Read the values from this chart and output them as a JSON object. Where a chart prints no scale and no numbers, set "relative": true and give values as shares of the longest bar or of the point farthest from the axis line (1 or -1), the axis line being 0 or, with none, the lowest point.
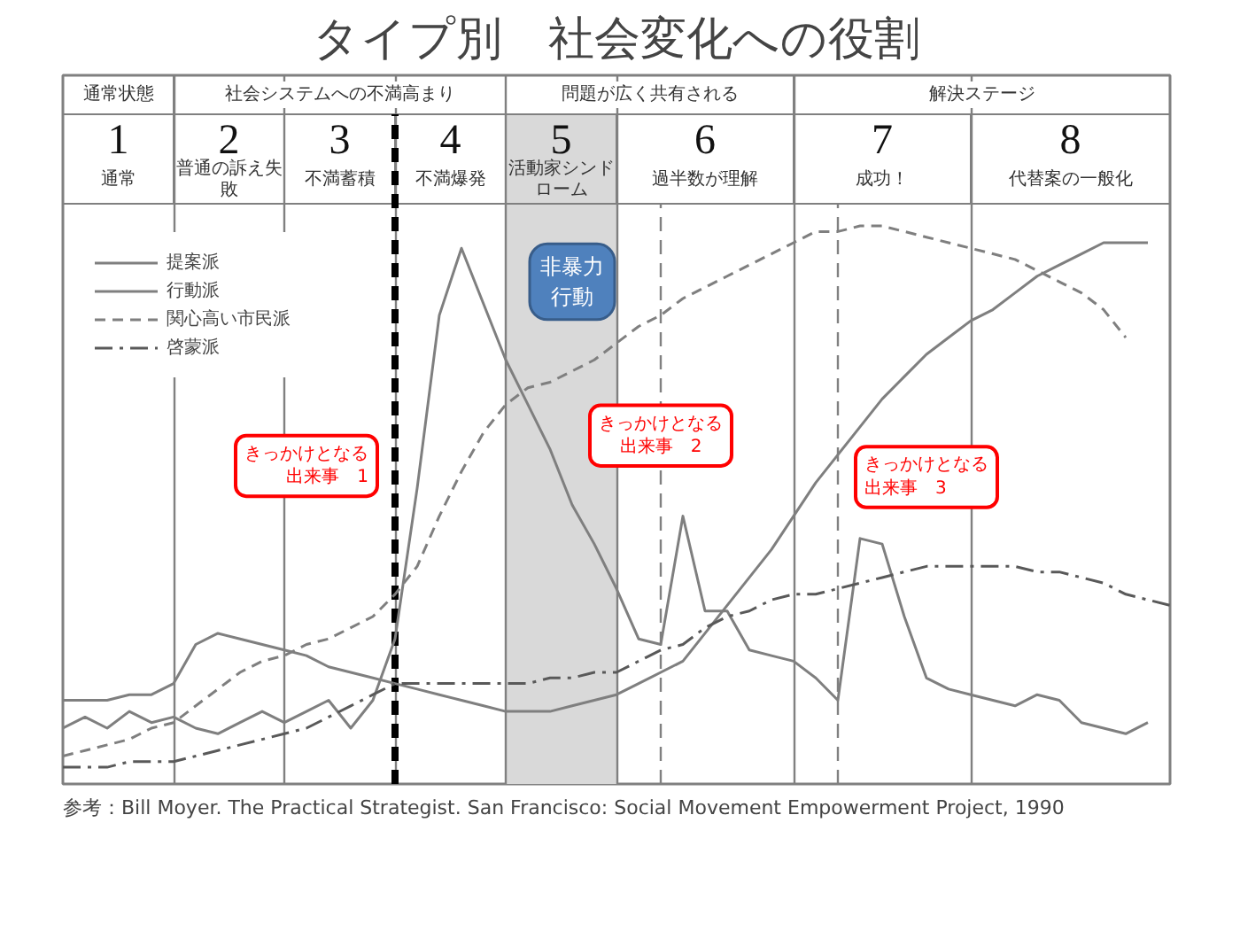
{
  "chart_data": {
    "type": "line",
    "relative": true,
    "title": "タイプ別　社会変化への役割",
    "tick_labels": false,
    "legend": "top left",
    "categories": [
      null,
      null,
      null,
      null,
      null,
      null,
      null,
      null,
      null,
      null,
      null,
      null,
      null,
      null,
      null,
      null,
      null,
      null,
      null,
      null,
      null,
      null,
      null,
      null,
      null,
      null,
      null,
      null,
      null,
      null,
      null,
      null,
      null,
      null,
      null,
      null,
      null,
      null,
      null,
      null,
      null,
      null,
      null,
      null,
      null,
      null,
      null,
      null,
      null,
      null,
      null
    ],
    "series": [
      {
        "name": "提案派",
        "color": "#7f7f7f",
        "line_style": "solid",
        "values": [
          0.15,
          0.15,
          0.15,
          0.16,
          0.16,
          0.18,
          0.25,
          0.27,
          0.26,
          0.25,
          0.24,
          0.23,
          0.21,
          0.2,
          0.19,
          0.18,
          0.17,
          0.16,
          0.15,
          0.14,
          0.13,
          0.13,
          0.13,
          0.14,
          0.15,
          0.16,
          0.18,
          0.2,
          0.22,
          0.27,
          0.32,
          0.37,
          0.42,
          0.48,
          0.54,
          0.59,
          0.64,
          0.69,
          0.73,
          0.77,
          0.8,
          0.83,
          0.85,
          0.88,
          0.91,
          0.93,
          0.95,
          0.97,
          0.97,
          0.97,
          null
        ]
      },
      {
        "name": "行動派",
        "color": "#7f7f7f",
        "line_style": "solid",
        "values": [
          0.1,
          0.12,
          0.1,
          0.13,
          0.11,
          0.12,
          0.1,
          0.09,
          0.11,
          0.13,
          0.11,
          0.13,
          0.15,
          0.1,
          0.15,
          0.26,
          0.53,
          0.84,
          0.96,
          0.86,
          0.76,
          0.68,
          0.6,
          0.5,
          0.43,
          0.35,
          0.26,
          0.25,
          0.48,
          0.31,
          0.31,
          0.24,
          0.23,
          0.22,
          0.19,
          0.15,
          0.44,
          0.43,
          0.3,
          0.19,
          0.17,
          0.16,
          0.15,
          0.14,
          0.16,
          0.15,
          0.11,
          0.1,
          0.09,
          0.11,
          null
        ]
      },
      {
        "name": "関心高い市民派",
        "color": "#7f7f7f",
        "line_style": "dashed",
        "values": [
          0.05,
          0.06,
          0.07,
          0.08,
          0.1,
          0.11,
          0.14,
          0.17,
          0.2,
          0.22,
          0.23,
          0.25,
          0.26,
          0.28,
          0.3,
          0.34,
          0.39,
          0.48,
          0.56,
          0.63,
          0.68,
          0.71,
          0.72,
          0.74,
          0.76,
          0.79,
          0.82,
          0.84,
          0.87,
          0.89,
          0.91,
          0.93,
          0.95,
          0.97,
          0.99,
          0.99,
          1.0,
          1.0,
          0.99,
          0.98,
          0.97,
          0.96,
          0.95,
          0.94,
          0.92,
          0.9,
          0.88,
          0.85,
          0.8,
          null,
          null
        ]
      },
      {
        "name": "啓蒙派",
        "color": "#595959",
        "line_style": "dashdot",
        "values": [
          0.03,
          0.03,
          0.03,
          0.04,
          0.04,
          0.04,
          0.05,
          0.06,
          0.07,
          0.08,
          0.09,
          0.1,
          0.12,
          0.14,
          0.16,
          0.18,
          0.18,
          0.18,
          0.18,
          0.18,
          0.18,
          0.18,
          0.19,
          0.19,
          0.2,
          0.2,
          0.22,
          0.24,
          0.25,
          0.28,
          0.3,
          0.31,
          0.33,
          0.34,
          0.34,
          0.35,
          0.36,
          0.37,
          0.38,
          0.39,
          0.39,
          0.39,
          0.39,
          0.39,
          0.38,
          0.38,
          0.37,
          0.36,
          0.34,
          0.33,
          0.32
        ]
      }
    ],
    "grid": "x",
    "annotations": [
      "通常状態",
      "社会システムへの不満高まり",
      "問題が広く共有される",
      "解決ステージ",
      "1 通常",
      "2 普通の訴え失敗",
      "3 不満蓄積",
      "4 不満爆発",
      "5 活動家シンドローム",
      "6 過半数が理解",
      "7 成功！",
      "8 代替案の一般化",
      "非暴力行動",
      "きっかけとなる出来事　1",
      "きっかけとなる出来事　2",
      "きっかけとなる出来事　3",
      "参考：Bill Moyer. The Practical Strategist. San Francisco: Social Movement Empowerment Project, 1990"
    ]
  }
}
